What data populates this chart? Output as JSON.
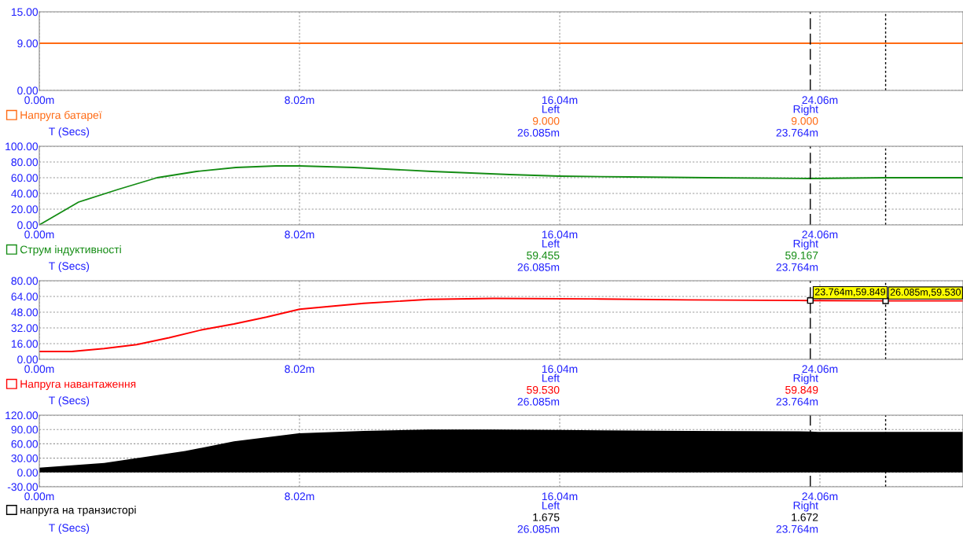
{
  "chart_data": [
    {
      "type": "line",
      "xlabel": "T (Secs)",
      "xlim": [
        0,
        28.47
      ],
      "xticks": [
        {
          "value": 0,
          "label": "0.00m"
        },
        {
          "value": 8.02,
          "label": "8.02m"
        },
        {
          "value": 16.04,
          "label": "16.04m"
        },
        {
          "value": 24.06,
          "label": "24.06m"
        }
      ],
      "ylim": [
        0,
        15
      ],
      "yticks": [
        {
          "value": 0,
          "label": "0.00"
        },
        {
          "value": 9,
          "label": "9.00"
        },
        {
          "value": 15,
          "label": "15.00"
        }
      ],
      "grid": true,
      "legend": "bottom left",
      "x": [
        0,
        28.47
      ],
      "series": [
        {
          "name": "Напруга батареї",
          "color": "#ff6a13",
          "values": [
            9,
            9
          ]
        }
      ],
      "ref_lines": [
        {
          "axis": "x",
          "value": 23.764,
          "label": null,
          "color": "#000000",
          "line_style": "dashed"
        },
        {
          "axis": "x",
          "value": 26.085,
          "label": null,
          "color": "#000000",
          "line_style": "dotted"
        }
      ],
      "annotations": [
        "Left",
        "Right",
        "9.000",
        "9.000",
        "26.085m",
        "23.764m"
      ]
    },
    {
      "type": "line",
      "xlabel": "T (Secs)",
      "xlim": [
        0,
        28.47
      ],
      "xticks": [
        {
          "value": 0,
          "label": "0.00m"
        },
        {
          "value": 8.02,
          "label": "8.02m"
        },
        {
          "value": 16.04,
          "label": "16.04m"
        },
        {
          "value": 24.06,
          "label": "24.06m"
        }
      ],
      "ylim": [
        0,
        100
      ],
      "yticks": [
        {
          "value": 0,
          "label": "0.00"
        },
        {
          "value": 20,
          "label": "20.00"
        },
        {
          "value": 40,
          "label": "40.00"
        },
        {
          "value": 60,
          "label": "60.00"
        },
        {
          "value": 80,
          "label": "80.00"
        },
        {
          "value": 100,
          "label": "100.00"
        }
      ],
      "grid": true,
      "legend": "bottom left",
      "x": [
        0,
        1.21,
        2.42,
        3.63,
        4.85,
        6.06,
        7.3,
        8.02,
        9.7,
        12.1,
        14.5,
        16.04,
        18.2,
        20.6,
        23.76,
        26.085,
        28.47
      ],
      "series": [
        {
          "name": "Струм індуктивності",
          "color": "#148c14",
          "values": [
            0,
            29,
            45,
            60,
            68,
            73,
            75,
            75,
            73,
            68,
            64,
            62,
            61,
            60,
            59,
            60,
            60
          ]
        }
      ],
      "ref_lines": [
        {
          "axis": "x",
          "value": 23.764,
          "label": null,
          "color": "#000000",
          "line_style": "dashed"
        },
        {
          "axis": "x",
          "value": 26.085,
          "label": null,
          "color": "#000000",
          "line_style": "dotted"
        }
      ],
      "annotations": [
        "Left",
        "Right",
        "59.455",
        "59.167",
        "26.085m",
        "23.764m"
      ]
    },
    {
      "type": "line",
      "xlabel": "T (Secs)",
      "xlim": [
        0,
        28.47
      ],
      "xticks": [
        {
          "value": 0,
          "label": "0.00m"
        },
        {
          "value": 8.02,
          "label": "8.02m"
        },
        {
          "value": 16.04,
          "label": "16.04m"
        },
        {
          "value": 24.06,
          "label": "24.06m"
        }
      ],
      "ylim": [
        0,
        80
      ],
      "yticks": [
        {
          "value": 0,
          "label": "0.00"
        },
        {
          "value": 16,
          "label": "16.00"
        },
        {
          "value": 32,
          "label": "32.00"
        },
        {
          "value": 48,
          "label": "48.00"
        },
        {
          "value": 64,
          "label": "64.00"
        },
        {
          "value": 80,
          "label": "80.00"
        }
      ],
      "grid": true,
      "legend": "bottom left",
      "x": [
        0,
        1,
        2,
        3,
        4,
        5,
        6,
        7,
        8.02,
        9,
        10,
        12,
        14,
        17,
        20,
        23.764,
        26.085,
        28.47
      ],
      "series": [
        {
          "name": "Напруга навантаження",
          "color": "#ff0000",
          "values": [
            8,
            8,
            11,
            15,
            22,
            30,
            36,
            43,
            51,
            54,
            57,
            61,
            62,
            61.5,
            60.5,
            59.8,
            59.5,
            59.5
          ]
        }
      ],
      "ref_lines": [
        {
          "axis": "x",
          "value": 23.764,
          "label": null,
          "color": "#000000",
          "line_style": "dashed"
        },
        {
          "axis": "x",
          "value": 26.085,
          "label": null,
          "color": "#000000",
          "line_style": "dotted"
        }
      ],
      "annotations": [
        "Left",
        "Right",
        "59.530",
        "59.849",
        "26.085m",
        "23.764m",
        {
          "text": "23.764m,59.849",
          "x": 23.764,
          "y": 59.849
        },
        {
          "text": "26.085m,59.530",
          "x": 26.085,
          "y": 59.53
        }
      ]
    },
    {
      "type": "area",
      "xlabel": "T (Secs)",
      "xlim": [
        0,
        28.47
      ],
      "xticks": [
        {
          "value": 0,
          "label": "0.00m"
        },
        {
          "value": 8.02,
          "label": "8.02m"
        },
        {
          "value": 16.04,
          "label": "16.04m"
        },
        {
          "value": 24.06,
          "label": "24.06m"
        }
      ],
      "ylim": [
        -30,
        120
      ],
      "yticks": [
        {
          "value": -30,
          "label": "-30.00"
        },
        {
          "value": 0,
          "label": "0.00"
        },
        {
          "value": 30,
          "label": "30.00"
        },
        {
          "value": 60,
          "label": "60.00"
        },
        {
          "value": 90,
          "label": "90.00"
        },
        {
          "value": 120,
          "label": "120.00"
        }
      ],
      "grid": true,
      "legend": "bottom left",
      "x": [
        0,
        2,
        4.5,
        6,
        8,
        10,
        12,
        14,
        16,
        20,
        23.764,
        24,
        28.47
      ],
      "series": [
        {
          "name": "напруга на транзисторі",
          "color": "#000000",
          "values": [
            10,
            20,
            45,
            65,
            82,
            87,
            90,
            90,
            89,
            87,
            86,
            85,
            85
          ]
        }
      ],
      "ref_lines": [
        {
          "axis": "x",
          "value": 23.764,
          "label": null,
          "color": "#000000",
          "line_style": "dashed"
        },
        {
          "axis": "x",
          "value": 26.085,
          "label": null,
          "color": "#000000",
          "line_style": "dotted"
        }
      ],
      "annotations": [
        "Left",
        "Right",
        "1.675",
        "1.672",
        "26.085m",
        "23.764m"
      ]
    }
  ]
}
